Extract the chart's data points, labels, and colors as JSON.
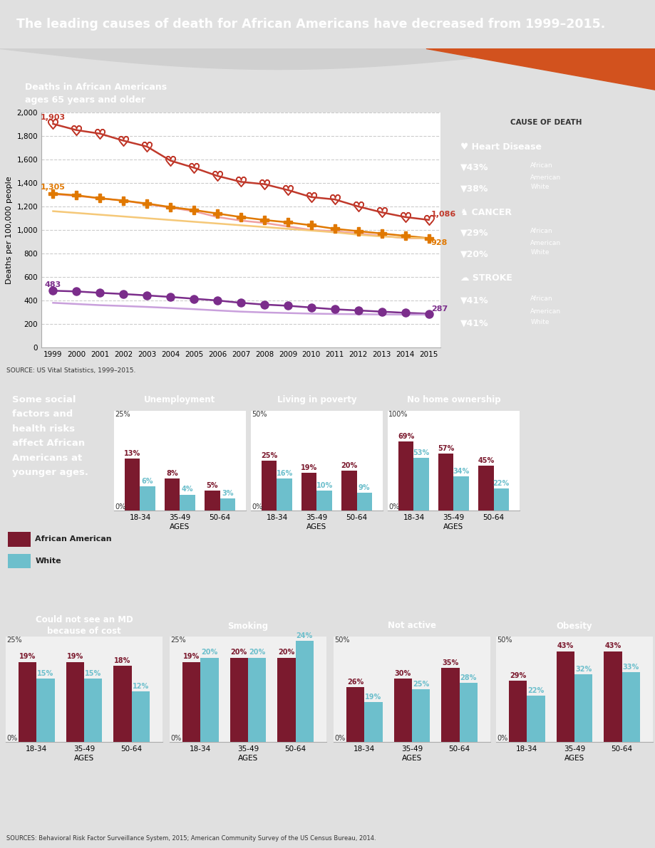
{
  "title": "The leading causes of death for African Americans have decreased from 1999–2015.",
  "title_bg": "#d2521e",
  "title_color": "#ffffff",
  "chart_bg": "#e0e0e0",
  "panel_bg": "#f5f5f5",
  "line_chart": {
    "subtitle": "Deaths in African Americans\nages 65 years and older",
    "subtitle_bg": "#2a8fa0",
    "years": [
      1999,
      2000,
      2001,
      2002,
      2003,
      2004,
      2005,
      2006,
      2007,
      2008,
      2009,
      2010,
      2011,
      2012,
      2013,
      2014,
      2015
    ],
    "heart_aa": [
      1903,
      1850,
      1820,
      1760,
      1710,
      1590,
      1530,
      1460,
      1410,
      1390,
      1340,
      1280,
      1260,
      1200,
      1150,
      1110,
      1086
    ],
    "heart_white": [
      1305,
      1290,
      1270,
      1250,
      1220,
      1190,
      1160,
      1110,
      1080,
      1060,
      1030,
      1000,
      990,
      970,
      950,
      930,
      928
    ],
    "cancer_aa": [
      1310,
      1295,
      1270,
      1250,
      1225,
      1195,
      1170,
      1140,
      1110,
      1085,
      1065,
      1040,
      1010,
      990,
      970,
      950,
      930
    ],
    "cancer_white": [
      1160,
      1145,
      1130,
      1115,
      1100,
      1085,
      1070,
      1055,
      1040,
      1025,
      1010,
      995,
      980,
      960,
      945,
      935,
      928
    ],
    "stroke_aa": [
      483,
      477,
      465,
      455,
      443,
      430,
      415,
      400,
      380,
      365,
      355,
      340,
      325,
      315,
      305,
      295,
      287
    ],
    "stroke_white": [
      380,
      370,
      360,
      353,
      345,
      336,
      326,
      315,
      305,
      298,
      293,
      288,
      285,
      283,
      281,
      280,
      280
    ],
    "heart_aa_color": "#c0392b",
    "heart_white_color": "#f0a0a0",
    "cancer_aa_color": "#e07800",
    "cancer_white_color": "#f5c878",
    "stroke_aa_color": "#7b2d8b",
    "stroke_white_color": "#c9a0dc",
    "ylabel": "Deaths per 100,000 people",
    "legend_title": "CAUSE OF DEATH",
    "legend_heart_bg": "#c0392b",
    "legend_cancer_bg": "#e07800",
    "legend_stroke_bg": "#7b2d8b",
    "source_text": "SOURCE: US Vital Statistics, 1999–2015."
  },
  "social_panel": {
    "left_text": "Some social\nfactors and\nhealth risks\naffect African\nAmericans at\nyounger ages.",
    "left_bg": "#2a8fa0",
    "aa_label": "African American",
    "white_label": "White"
  },
  "bar_charts_row1": [
    {
      "title": "Unemployment",
      "title_bg": "#5ab52e",
      "ylim": 25,
      "ytop_label": "25%",
      "ages": [
        "18-34",
        "35-49",
        "50-64"
      ],
      "aa": [
        13,
        8,
        5
      ],
      "white": [
        6,
        4,
        3
      ]
    },
    {
      "title": "Living in poverty",
      "title_bg": "#2ab5c0",
      "ylim": 50,
      "ytop_label": "50%",
      "ages": [
        "18-34",
        "35-49",
        "50-64"
      ],
      "aa": [
        25,
        19,
        20
      ],
      "white": [
        16,
        10,
        9
      ]
    },
    {
      "title": "No home ownership",
      "title_bg": "#1a5f80",
      "ylim": 100,
      "ytop_label": "100%",
      "ages": [
        "18-34",
        "35-49",
        "50-64"
      ],
      "aa": [
        69,
        57,
        45
      ],
      "white": [
        53,
        34,
        22
      ]
    }
  ],
  "bar_charts_row2": [
    {
      "title": "Could not see an MD\nbecause of cost",
      "title_bg": "#e07800",
      "ylim": 25,
      "ytop_label": "25%",
      "ages": [
        "18-34",
        "35-49",
        "50-64"
      ],
      "aa": [
        19,
        19,
        18
      ],
      "white": [
        15,
        15,
        12
      ]
    },
    {
      "title": "Smoking",
      "title_bg": "#888888",
      "ylim": 25,
      "ytop_label": "25%",
      "ages": [
        "18-34",
        "35-49",
        "50-64"
      ],
      "aa": [
        19,
        20,
        20
      ],
      "white": [
        20,
        20,
        24
      ]
    },
    {
      "title": "Not active",
      "title_bg": "#c0392b",
      "ylim": 50,
      "ytop_label": "50%",
      "ages": [
        "18-34",
        "35-49",
        "50-64"
      ],
      "aa": [
        26,
        30,
        35
      ],
      "white": [
        19,
        25,
        28
      ]
    },
    {
      "title": "Obesity",
      "title_bg": "#2ab5c0",
      "ylim": 50,
      "ytop_label": "50%",
      "ages": [
        "18-34",
        "35-49",
        "50-64"
      ],
      "aa": [
        29,
        43,
        43
      ],
      "white": [
        22,
        32,
        33
      ]
    }
  ],
  "footer_text": "SOURCES: Behavioral Risk Factor Surveillance System, 2015; American Community Survey of the US Census Bureau, 2014.",
  "aa_bar_color": "#7b1a2e",
  "white_bar_color": "#6dbfcc"
}
